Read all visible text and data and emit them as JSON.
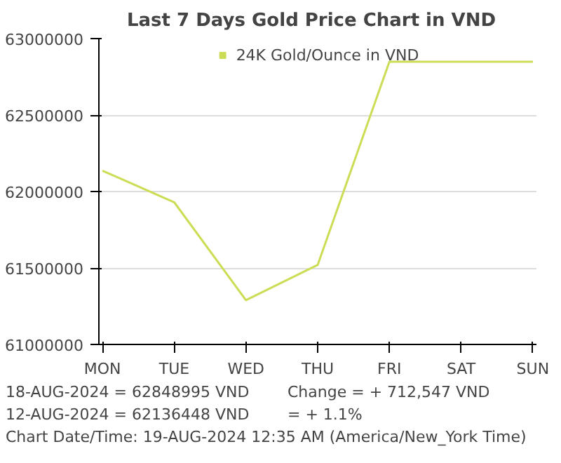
{
  "chart_data": {
    "type": "line",
    "title": "Last 7 Days Gold Price Chart in VND",
    "categories": [
      "MON",
      "TUE",
      "WED",
      "THU",
      "FRI",
      "SAT",
      "SUN"
    ],
    "series": [
      {
        "name": "24K Gold/Ounce in VND",
        "color": "#ccdd55",
        "values": [
          62136448,
          61930000,
          61290000,
          61520000,
          62848995,
          62848995,
          62848995
        ]
      }
    ],
    "ylim": [
      61000000,
      63000000
    ],
    "yticks": [
      61000000,
      61500000,
      62000000,
      62500000,
      63000000
    ],
    "grid": "y",
    "legend": "top",
    "marker": "none",
    "annotations": [
      "18-AUG-2024 = 62848995 VND",
      "12-AUG-2024 = 62136448 VND",
      "Change = + 712,547 VND",
      "= + 1.1%",
      "Chart Date/Time: 19-AUG-2024 12:35 AM (America/New_York Time)"
    ]
  }
}
